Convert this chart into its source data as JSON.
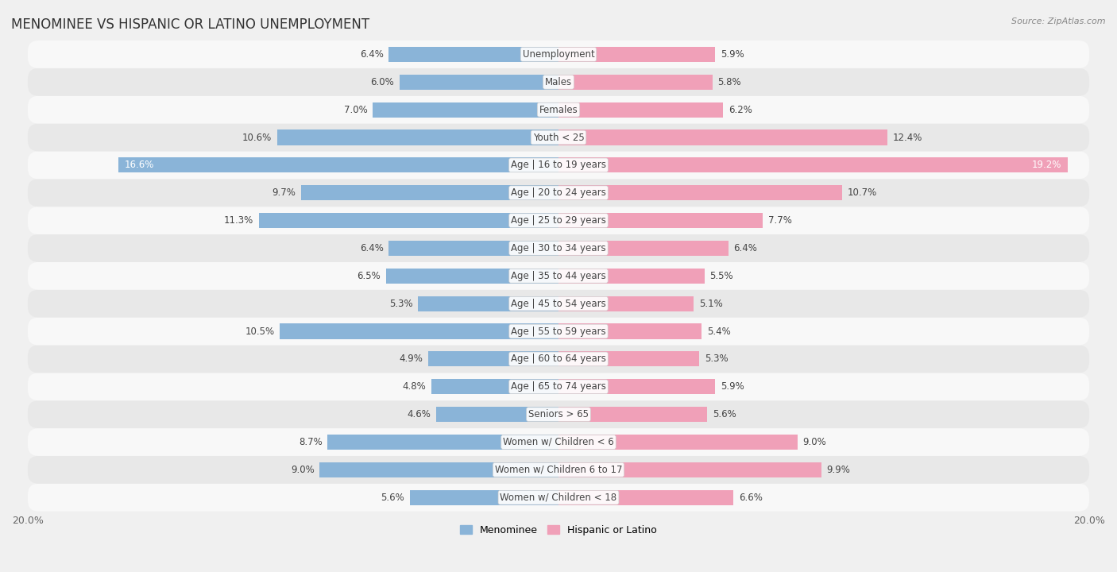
{
  "title": "MENOMINEE VS HISPANIC OR LATINO UNEMPLOYMENT",
  "source": "Source: ZipAtlas.com",
  "categories": [
    "Unemployment",
    "Males",
    "Females",
    "Youth < 25",
    "Age | 16 to 19 years",
    "Age | 20 to 24 years",
    "Age | 25 to 29 years",
    "Age | 30 to 34 years",
    "Age | 35 to 44 years",
    "Age | 45 to 54 years",
    "Age | 55 to 59 years",
    "Age | 60 to 64 years",
    "Age | 65 to 74 years",
    "Seniors > 65",
    "Women w/ Children < 6",
    "Women w/ Children 6 to 17",
    "Women w/ Children < 18"
  ],
  "menominee_values": [
    6.4,
    6.0,
    7.0,
    10.6,
    16.6,
    9.7,
    11.3,
    6.4,
    6.5,
    5.3,
    10.5,
    4.9,
    4.8,
    4.6,
    8.7,
    9.0,
    5.6
  ],
  "hispanic_values": [
    5.9,
    5.8,
    6.2,
    12.4,
    19.2,
    10.7,
    7.7,
    6.4,
    5.5,
    5.1,
    5.4,
    5.3,
    5.9,
    5.6,
    9.0,
    9.9,
    6.6
  ],
  "menominee_color": "#8ab4d8",
  "hispanic_color": "#f0a0b8",
  "background_color": "#f0f0f0",
  "row_light_color": "#f8f8f8",
  "row_dark_color": "#e8e8e8",
  "axis_max": 20.0,
  "legend_label_menominee": "Menominee",
  "legend_label_hispanic": "Hispanic or Latino",
  "title_fontsize": 12,
  "label_fontsize": 8.5,
  "tick_fontsize": 9,
  "value_fontsize": 8.5
}
